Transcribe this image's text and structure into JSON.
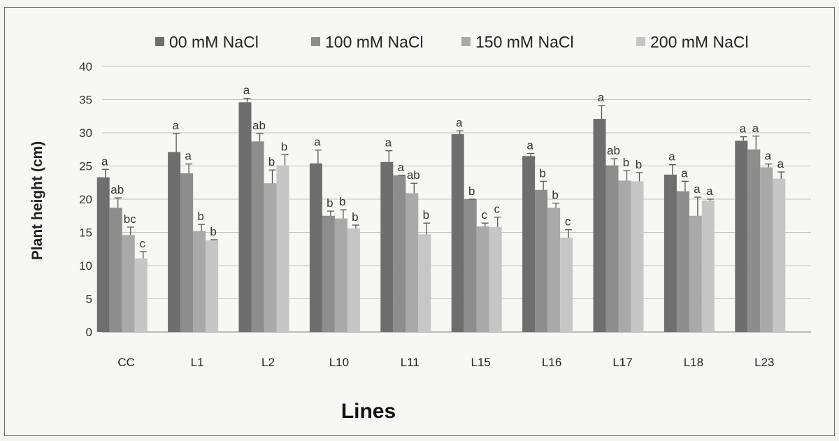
{
  "chart_data": {
    "type": "bar",
    "title": "",
    "xlabel": "Lines",
    "ylabel": "Plant height (cm)",
    "ylim": [
      0,
      40
    ],
    "yticks": [
      0,
      5,
      10,
      15,
      20,
      25,
      30,
      35,
      40
    ],
    "categories": [
      "CC",
      "L1",
      "L2",
      "L10",
      "L11",
      "L15",
      "L16",
      "L17",
      "L18",
      "L23"
    ],
    "legend_position": "top",
    "series": [
      {
        "name": "00 mM NaCl",
        "color": "#6e6e6e",
        "values": [
          23.3,
          27.1,
          34.6,
          25.4,
          25.6,
          29.8,
          26.5,
          32.1,
          23.7,
          28.8
        ],
        "errors": [
          1.2,
          2.8,
          0.6,
          2.0,
          1.7,
          0.5,
          0.4,
          2.0,
          1.5,
          0.6
        ],
        "letters": [
          "a",
          "a",
          "a",
          "a",
          "a",
          "a",
          "a",
          "a",
          "a",
          "a"
        ]
      },
      {
        "name": "100 mM NaCl",
        "color": "#8d8d8d",
        "values": [
          18.7,
          23.9,
          28.7,
          17.5,
          23.6,
          20.0,
          21.4,
          25.1,
          21.2,
          27.5
        ],
        "errors": [
          1.5,
          1.4,
          1.2,
          0.7,
          0.0,
          0.0,
          1.3,
          1.0,
          1.5,
          2.0
        ],
        "letters": [
          "ab",
          "a",
          "ab",
          "b",
          "a",
          "b",
          "b",
          "ab",
          "a",
          "a"
        ]
      },
      {
        "name": "150 mM NaCl",
        "color": "#a9a9a9",
        "values": [
          14.6,
          15.2,
          22.4,
          17.1,
          20.9,
          15.9,
          18.7,
          22.8,
          17.5,
          24.8
        ],
        "errors": [
          1.2,
          1.0,
          2.0,
          1.3,
          1.5,
          0.5,
          0.7,
          1.5,
          2.8,
          0.5
        ],
        "letters": [
          "bc",
          "b",
          "b",
          "b",
          "ab",
          "c",
          "b",
          "b",
          "a",
          "a"
        ]
      },
      {
        "name": "200 mM NaCl",
        "color": "#c6c6c6",
        "values": [
          11.1,
          13.8,
          25.1,
          15.6,
          14.7,
          15.8,
          14.2,
          22.7,
          19.8,
          23.1
        ],
        "errors": [
          1.0,
          0.1,
          1.6,
          0.5,
          1.7,
          1.5,
          1.2,
          1.3,
          0.2,
          1.0
        ],
        "letters": [
          "c",
          "b",
          "b",
          "b",
          "b",
          "c",
          "c",
          "b",
          "a",
          "a"
        ]
      }
    ]
  }
}
